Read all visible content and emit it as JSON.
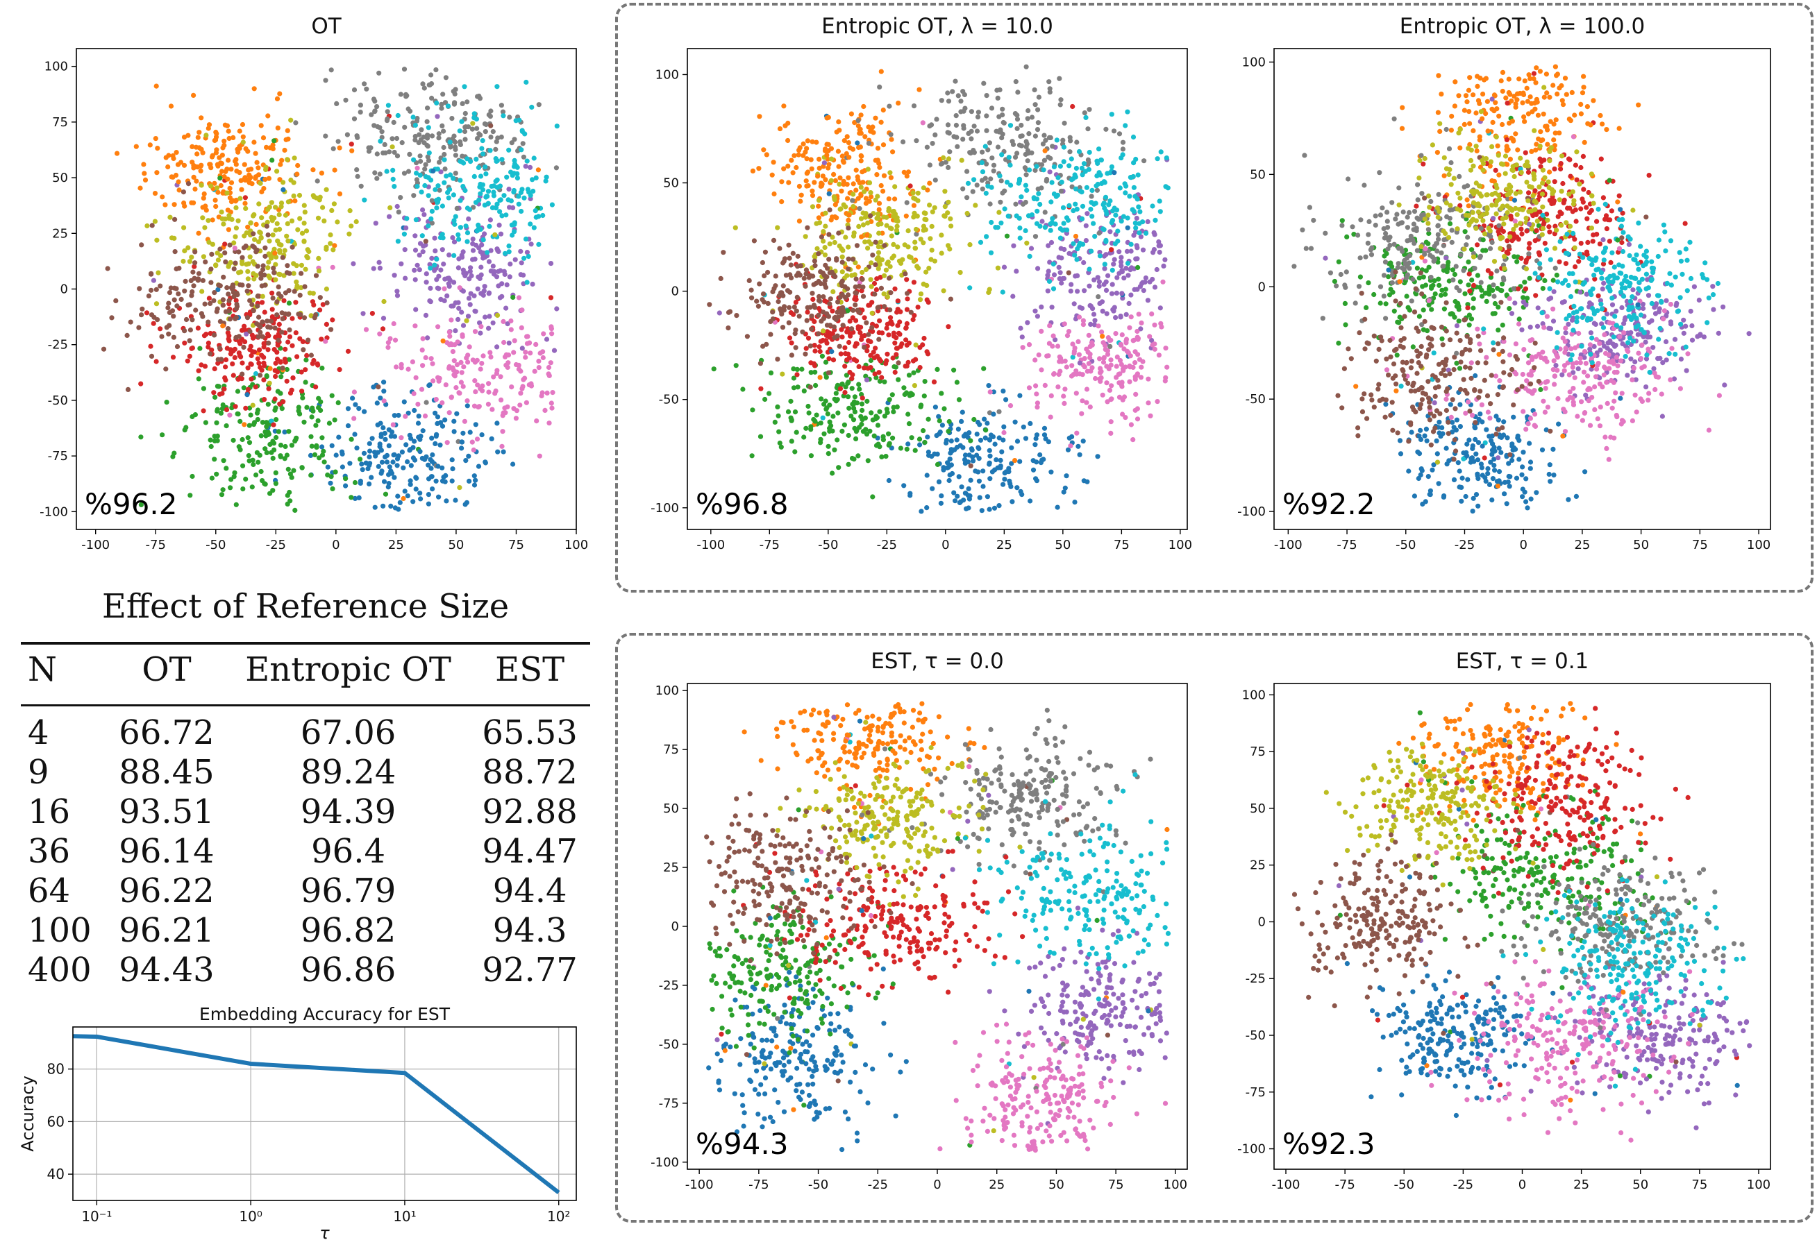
{
  "scatter_panels": [
    {
      "id": "ot",
      "title": "OT",
      "accuracy": "%96.2",
      "seed": 11,
      "xticks": [
        -100,
        -75,
        -50,
        -25,
        0,
        25,
        50,
        75,
        100
      ],
      "yticks": [
        -100,
        -75,
        -50,
        -25,
        0,
        25,
        50,
        75,
        100
      ],
      "xlim": [
        -108,
        100
      ],
      "ylim": [
        -108,
        108
      ]
    },
    {
      "id": "entropic_10",
      "title": "Entropic OT, λ = 10.0",
      "accuracy": "%96.8",
      "seed": 23,
      "xticks": [
        -100,
        -75,
        -50,
        -25,
        0,
        25,
        50,
        75,
        100
      ],
      "yticks": [
        -100,
        -50,
        0,
        50,
        100
      ],
      "xlim": [
        -110,
        103
      ],
      "ylim": [
        -110,
        112
      ]
    },
    {
      "id": "entropic_100",
      "title": "Entropic OT, λ = 100.0",
      "accuracy": "%92.2",
      "seed": 37,
      "xticks": [
        -100,
        -75,
        -50,
        -25,
        0,
        25,
        50,
        75,
        100
      ],
      "yticks": [
        -100,
        -50,
        0,
        50,
        100
      ],
      "xlim": [
        -106,
        105
      ],
      "ylim": [
        -108,
        106
      ]
    },
    {
      "id": "est_0",
      "title": "EST, τ = 0.0",
      "accuracy": "%94.3",
      "seed": 41,
      "xticks": [
        -100,
        -75,
        -50,
        -25,
        0,
        25,
        50,
        75,
        100
      ],
      "yticks": [
        -100,
        -75,
        -50,
        -25,
        0,
        25,
        50,
        75,
        100
      ],
      "xlim": [
        -105,
        105
      ],
      "ylim": [
        -103,
        103
      ]
    },
    {
      "id": "est_01",
      "title": "EST, τ = 0.1",
      "accuracy": "%92.3",
      "seed": 53,
      "xticks": [
        -100,
        -75,
        -50,
        -25,
        0,
        25,
        50,
        75,
        100
      ],
      "yticks": [
        -100,
        -75,
        -50,
        -25,
        0,
        25,
        50,
        75,
        100
      ],
      "xlim": [
        -105,
        105
      ],
      "ylim": [
        -109,
        105
      ]
    }
  ],
  "cluster_colors": [
    "#1f77b4",
    "#ff7f0e",
    "#2ca02c",
    "#d62728",
    "#9467bd",
    "#e377c2",
    "#7f7f7f",
    "#bcbd22",
    "#17becf",
    "#8c564b"
  ],
  "chart_data": [
    {
      "type": "scatter",
      "title": "OT",
      "annotation": "%96.2",
      "n_classes": 10,
      "class_centers": [
        [
          30,
          -75
        ],
        [
          -45,
          55
        ],
        [
          -30,
          -65
        ],
        [
          -35,
          -25
        ],
        [
          55,
          10
        ],
        [
          65,
          -35
        ],
        [
          40,
          70
        ],
        [
          -30,
          22
        ],
        [
          60,
          45
        ],
        [
          -45,
          -5
        ]
      ]
    },
    {
      "type": "scatter",
      "title": "Entropic OT, λ = 10.0",
      "annotation": "%96.8",
      "n_classes": 10,
      "class_centers": [
        [
          15,
          -80
        ],
        [
          -45,
          55
        ],
        [
          -40,
          -55
        ],
        [
          -35,
          -20
        ],
        [
          70,
          10
        ],
        [
          70,
          -35
        ],
        [
          25,
          70
        ],
        [
          -25,
          25
        ],
        [
          55,
          40
        ],
        [
          -55,
          0
        ]
      ]
    },
    {
      "type": "scatter",
      "title": "Entropic OT, λ = 100.0",
      "annotation": "%92.2",
      "n_classes": 10,
      "class_centers": [
        [
          -20,
          -75
        ],
        [
          0,
          80
        ],
        [
          -30,
          0
        ],
        [
          10,
          30
        ],
        [
          40,
          -20
        ],
        [
          20,
          -40
        ],
        [
          -40,
          20
        ],
        [
          -10,
          40
        ],
        [
          40,
          0
        ],
        [
          -40,
          -40
        ]
      ]
    },
    {
      "type": "scatter",
      "title": "EST, τ = 0.0",
      "annotation": "%94.3",
      "n_classes": 10,
      "class_centers": [
        [
          -60,
          -55
        ],
        [
          -30,
          80
        ],
        [
          -65,
          -20
        ],
        [
          -20,
          0
        ],
        [
          70,
          -35
        ],
        [
          45,
          -75
        ],
        [
          40,
          55
        ],
        [
          -20,
          45
        ],
        [
          70,
          15
        ],
        [
          -65,
          20
        ]
      ]
    },
    {
      "type": "scatter",
      "title": "EST, τ = 0.1",
      "annotation": "%92.3",
      "n_classes": 10,
      "class_centers": [
        [
          -30,
          -50
        ],
        [
          -10,
          75
        ],
        [
          10,
          20
        ],
        [
          20,
          55
        ],
        [
          60,
          -50
        ],
        [
          20,
          -55
        ],
        [
          40,
          0
        ],
        [
          -40,
          50
        ],
        [
          45,
          -20
        ],
        [
          -60,
          0
        ]
      ]
    },
    {
      "type": "table",
      "title": "Effect of Reference Size",
      "columns": [
        "N",
        "OT",
        "Entropic OT",
        "EST"
      ],
      "rows": [
        [
          "4",
          "66.72",
          "67.06",
          "65.53"
        ],
        [
          "9",
          "88.45",
          "89.24",
          "88.72"
        ],
        [
          "16",
          "93.51",
          "94.39",
          "92.88"
        ],
        [
          "36",
          "96.14",
          "96.4",
          "94.47"
        ],
        [
          "64",
          "96.22",
          "96.79",
          "94.4"
        ],
        [
          "100",
          "96.21",
          "96.82",
          "94.3"
        ],
        [
          "400",
          "94.43",
          "96.86",
          "92.77"
        ]
      ]
    },
    {
      "type": "line",
      "title": "Embedding Accuracy for EST",
      "xlabel": "τ",
      "ylabel": "Accuracy",
      "xscale": "log",
      "xlim": [
        0.07,
        130
      ],
      "ylim": [
        30,
        96
      ],
      "x": [
        0.07,
        0.1,
        1,
        10,
        100
      ],
      "y": [
        92.5,
        92.3,
        82,
        78.5,
        33
      ],
      "xtick_labels": [
        "10⁻¹",
        "10⁰",
        "10¹",
        "10²"
      ],
      "xtick_values": [
        0.1,
        1,
        10,
        100
      ],
      "ytick_values": [
        40,
        60,
        80
      ],
      "grid": true,
      "color": "#1f77b4"
    }
  ]
}
